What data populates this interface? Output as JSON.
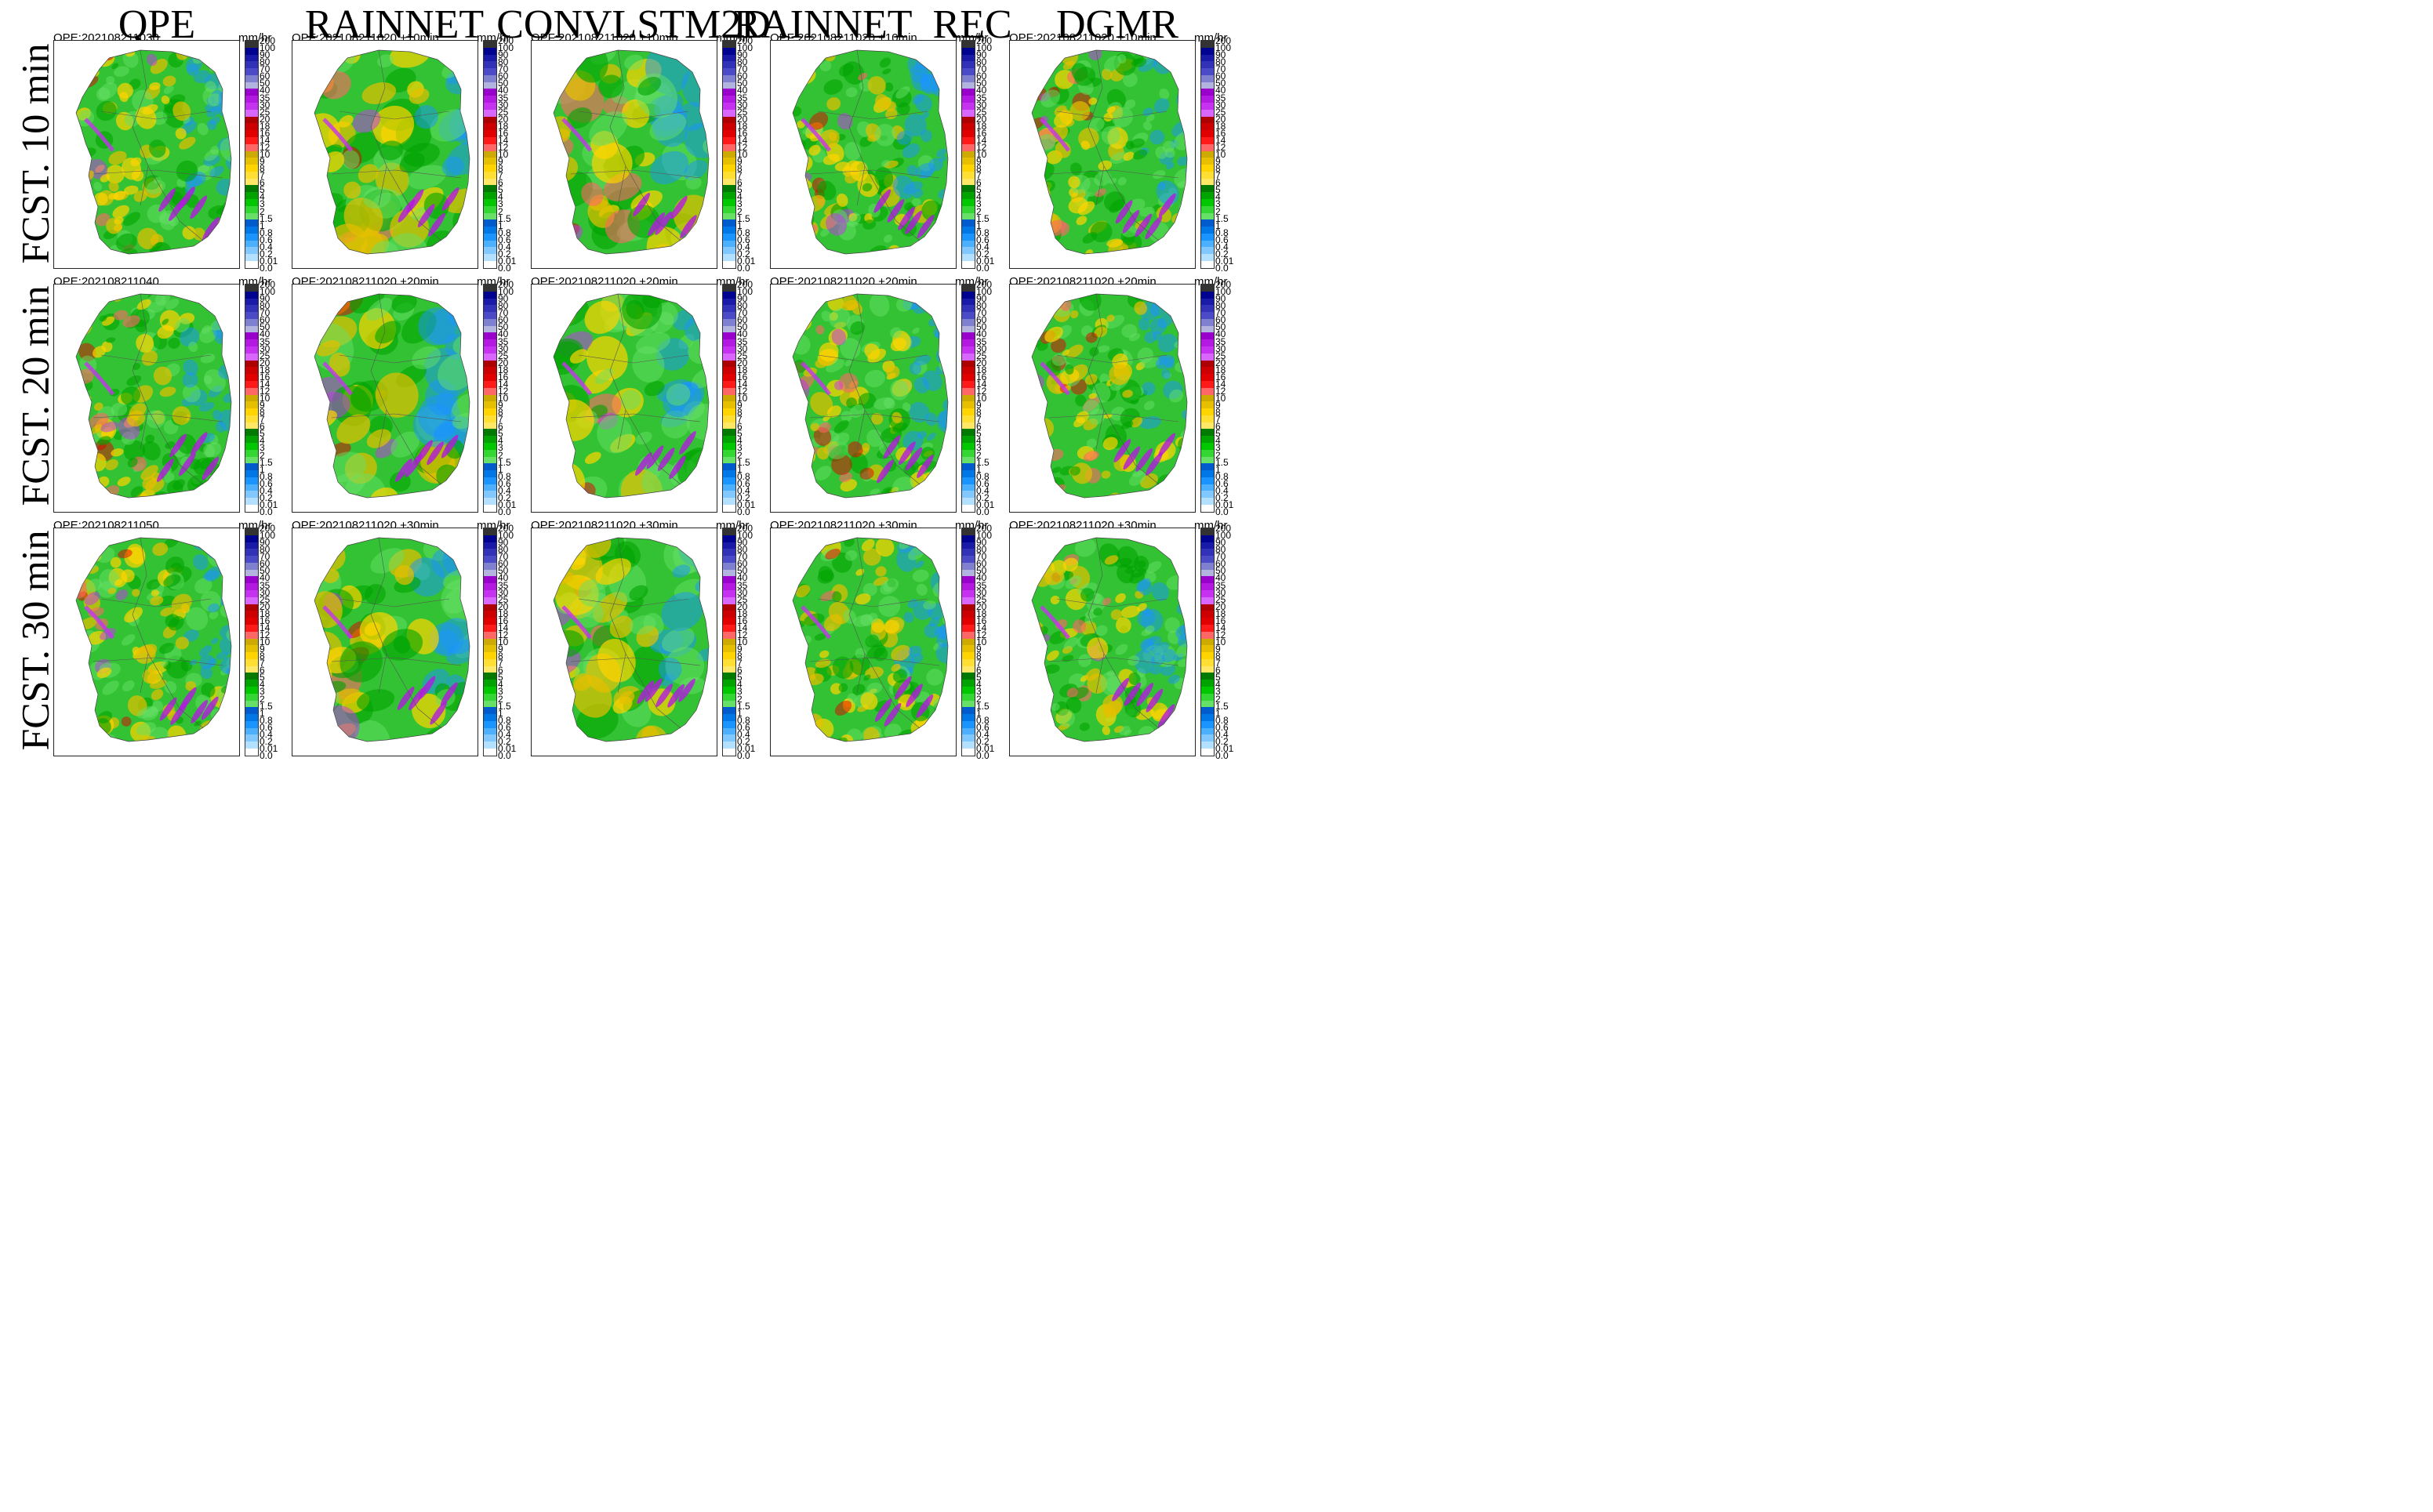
{
  "columns": [
    "QPE",
    "RAINNET",
    "CONVLSTM2D",
    "RAINNET_REC",
    "DGMR"
  ],
  "rows": [
    "FCST. 10 min",
    "FCST. 20 min",
    "FCST. 30 min"
  ],
  "units": "mm/hr",
  "panel_labels": [
    [
      "QPE:202108211030",
      "QPF:202108211020 +10min",
      "QPF:202108211020 +10min",
      "QPF:202108211020 +10min",
      "QPF:202108211020 +10min"
    ],
    [
      "QPE:202108211040",
      "QPF:202108211020 +20min",
      "QPF:202108211020 +20min",
      "QPF:202108211020 +20min",
      "QPF:202108211020 +20min"
    ],
    [
      "QPE:202108211050",
      "QPF:202108211020 +30min",
      "QPF:202108211020 +30min",
      "QPF:202108211020 +30min",
      "QPF:202108211020 +30min"
    ]
  ],
  "colorbar": {
    "ticks": [
      "200",
      "100",
      "90",
      "80",
      "70",
      "60",
      "50",
      "40",
      "35",
      "30",
      "25",
      "20",
      "18",
      "16",
      "14",
      "12",
      "10",
      "9",
      "8",
      "7",
      "6",
      "5",
      "4",
      "3",
      "2",
      "1.5",
      "1",
      "0.8",
      "0.6",
      "0.4",
      "0.2",
      "0.01",
      "0.0"
    ],
    "colors": [
      "#333333",
      "#000390",
      "#1a1aa8",
      "#3232b8",
      "#4b4bc8",
      "#8080d0",
      "#b3b3e0",
      "#9900cc",
      "#b319e0",
      "#c633f0",
      "#d966ff",
      "#ad0000",
      "#cc0000",
      "#e00000",
      "#ff1a1a",
      "#ff6666",
      "#ccaa00",
      "#e6bf00",
      "#ffd400",
      "#ffdf33",
      "#ffe866",
      "#007a00",
      "#00a300",
      "#00c700",
      "#33d633",
      "#66e066",
      "#005ccc",
      "#0077e6",
      "#1a94ff",
      "#4db0ff",
      "#80c8ff",
      "#b3e0ff",
      "#ffffff"
    ]
  }
}
